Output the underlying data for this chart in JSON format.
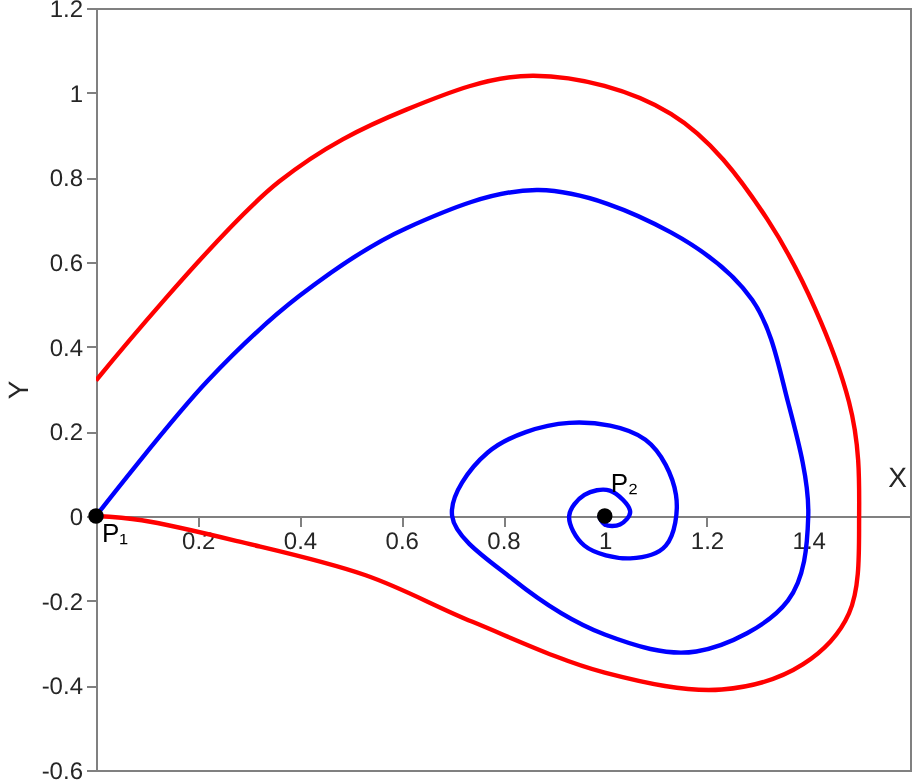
{
  "chart_data": {
    "type": "line",
    "xlabel": "X",
    "ylabel": "Y",
    "xlim": [
      0,
      1.6
    ],
    "ylim": [
      -0.6,
      1.2
    ],
    "xticks": [
      0.2,
      0.4,
      0.6,
      0.8,
      1,
      1.2,
      1.4
    ],
    "yticks": [
      -0.6,
      -0.4,
      -0.2,
      0,
      0.2,
      0.4,
      0.6,
      0.8,
      1,
      1.2
    ],
    "grid": false,
    "line_style": "solid",
    "series": [
      {
        "color": "#ff0000",
        "x": [
          0,
          0.36,
          0.61,
          0.86,
          1.13,
          1.32,
          1.48,
          1.5,
          1.48,
          1.39,
          1.23,
          1.0,
          0.74,
          0.53,
          0.28,
          0.09,
          0
        ],
        "values": [
          0.32,
          0.79,
          0.96,
          1.04,
          0.95,
          0.7,
          0.27,
          0,
          -0.23,
          -0.35,
          -0.41,
          -0.37,
          -0.25,
          -0.14,
          -0.06,
          -0.01,
          0
        ]
      },
      {
        "color": "#0000ff",
        "x": [
          0,
          0.22,
          0.4,
          0.61,
          0.87,
          1.13,
          1.29,
          1.36,
          1.4,
          1.36,
          1.18,
          1.0,
          0.82,
          0.7,
          0.77,
          0.93,
          1.08,
          1.14,
          1.12,
          1.05,
          0.96,
          0.93,
          0.96,
          1.01,
          1.05,
          1.03,
          1.0,
          0.99,
          1.0
        ],
        "values": [
          0,
          0.32,
          0.52,
          0.68,
          0.77,
          0.67,
          0.51,
          0.27,
          0,
          -0.2,
          -0.32,
          -0.28,
          -0.15,
          0,
          0.15,
          0.22,
          0.18,
          0.05,
          -0.07,
          -0.1,
          -0.07,
          0,
          0.05,
          0.06,
          0.01,
          -0.02,
          -0.02,
          0,
          0
        ]
      },
      {
        "type": "scatter",
        "color": "#000000",
        "marker": "circle",
        "x": [
          0,
          1
        ],
        "values": [
          0,
          0
        ]
      }
    ],
    "annotations": [
      {
        "text": "P₁",
        "x": 0,
        "y": 0
      },
      {
        "text": "P₂",
        "x": 1,
        "y": 0
      }
    ]
  }
}
